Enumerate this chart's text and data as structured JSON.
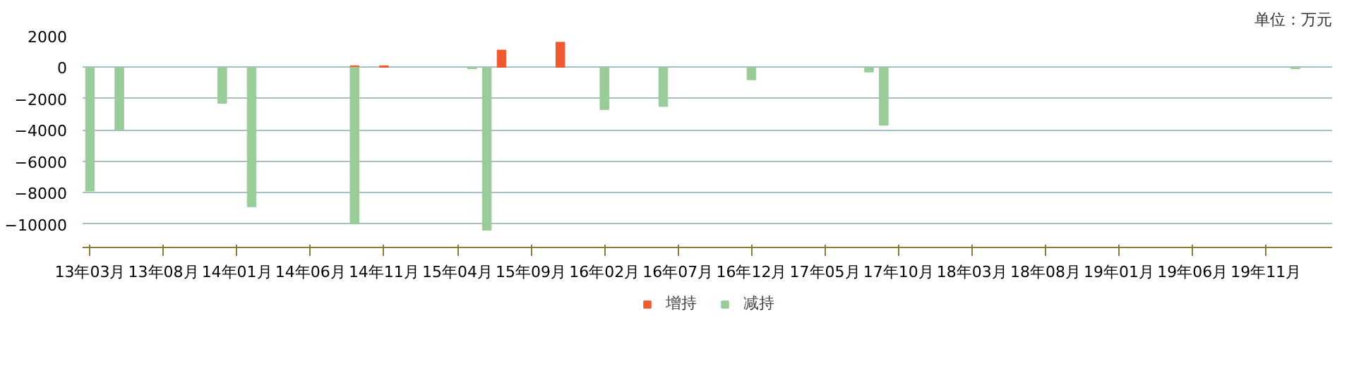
{
  "chart_data": {
    "type": "bar",
    "annotations": [
      "单位：万元"
    ],
    "categories": [
      "13年03月",
      null,
      null,
      null,
      null,
      "13年08月",
      null,
      null,
      null,
      null,
      "14年01月",
      null,
      null,
      null,
      null,
      "14年06月",
      null,
      null,
      null,
      null,
      "14年11月",
      null,
      null,
      null,
      null,
      "15年04月",
      null,
      null,
      null,
      null,
      "15年09月",
      null,
      null,
      null,
      null,
      "16年02月",
      null,
      null,
      null,
      null,
      "16年07月",
      null,
      null,
      null,
      null,
      "16年12月",
      null,
      null,
      null,
      null,
      "17年05月",
      null,
      null,
      null,
      null,
      "17年10月",
      null,
      null,
      null,
      null,
      "18年03月",
      null,
      null,
      null,
      null,
      "18年08月",
      null,
      null,
      null,
      null,
      "19年01月",
      null,
      null,
      null,
      null,
      "19年06月",
      null,
      null,
      null,
      null,
      "19年11月",
      null,
      null,
      null,
      null
    ],
    "series": [
      {
        "name": "增持",
        "color": "#f05a30",
        "values": [
          null,
          null,
          null,
          null,
          null,
          null,
          null,
          null,
          null,
          null,
          null,
          null,
          null,
          null,
          null,
          null,
          null,
          null,
          100,
          null,
          100,
          null,
          null,
          null,
          null,
          null,
          null,
          null,
          1100,
          null,
          null,
          null,
          1600,
          null,
          null,
          null,
          null,
          null,
          null,
          null,
          null,
          null,
          null,
          null,
          null,
          null,
          null,
          null,
          null,
          null,
          null,
          null,
          null,
          null,
          null,
          null,
          null,
          null,
          null,
          null,
          null,
          null,
          null,
          null,
          null,
          null,
          null,
          null,
          null,
          null,
          null,
          null,
          null,
          null,
          null,
          null,
          null,
          null,
          null,
          null,
          null,
          null,
          null,
          null,
          null
        ]
      },
      {
        "name": "减持",
        "color": "#99cc99",
        "values": [
          -7900,
          null,
          -4000,
          null,
          null,
          null,
          null,
          null,
          null,
          -2300,
          null,
          -8900,
          null,
          null,
          null,
          null,
          null,
          null,
          -10000,
          null,
          null,
          null,
          null,
          null,
          null,
          null,
          -100,
          -10400,
          null,
          null,
          null,
          null,
          null,
          null,
          null,
          -2700,
          null,
          null,
          null,
          -2500,
          null,
          null,
          null,
          null,
          null,
          -800,
          null,
          null,
          null,
          null,
          null,
          null,
          null,
          -300,
          -3700,
          null,
          null,
          null,
          null,
          null,
          null,
          null,
          null,
          null,
          null,
          null,
          null,
          null,
          null,
          null,
          null,
          null,
          null,
          null,
          null,
          null,
          null,
          null,
          null,
          null,
          null,
          null,
          -100,
          null,
          null
        ]
      }
    ],
    "ylim": [
      -11500,
      2000
    ],
    "yticks": [
      -10000,
      -8000,
      -6000,
      -4000,
      -2000,
      0,
      2000
    ],
    "grid": "y",
    "legend": "bottom"
  }
}
